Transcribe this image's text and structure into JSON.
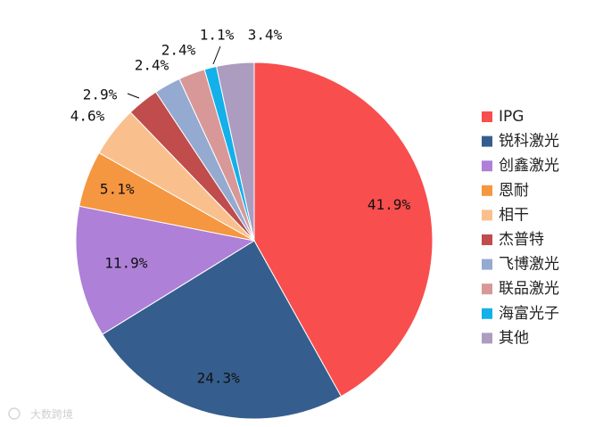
{
  "chart_data": {
    "type": "pie",
    "title": "",
    "start_angle_deg": 0,
    "direction": "clockwise",
    "slices": [
      {
        "label": "IPG",
        "value": 41.9,
        "display": "41.9%",
        "color": "#F84E4E"
      },
      {
        "label": "锐科激光",
        "value": 24.3,
        "display": "24.3%",
        "color": "#355E8E"
      },
      {
        "label": "创鑫激光",
        "value": 11.9,
        "display": "11.9%",
        "color": "#AE80D8"
      },
      {
        "label": "恩耐",
        "value": 5.1,
        "display": "5.1%",
        "color": "#F59640"
      },
      {
        "label": "相干",
        "value": 4.6,
        "display": "4.6%",
        "color": "#F9C08E"
      },
      {
        "label": "杰普特",
        "value": 2.9,
        "display": "2.9%",
        "color": "#C04C4C"
      },
      {
        "label": "飞博激光",
        "value": 2.4,
        "display": "2.4%",
        "color": "#94AAD0"
      },
      {
        "label": "联品激光",
        "value": 2.4,
        "display": "2.4%",
        "color": "#D89898"
      },
      {
        "label": "海富光子",
        "value": 1.1,
        "display": "1.1%",
        "color": "#13B0EA"
      },
      {
        "label": "其他",
        "value": 3.4,
        "display": "3.4%",
        "color": "#AC9CC0"
      }
    ],
    "legend": {
      "position": "right"
    }
  },
  "watermark": "大数跨境"
}
